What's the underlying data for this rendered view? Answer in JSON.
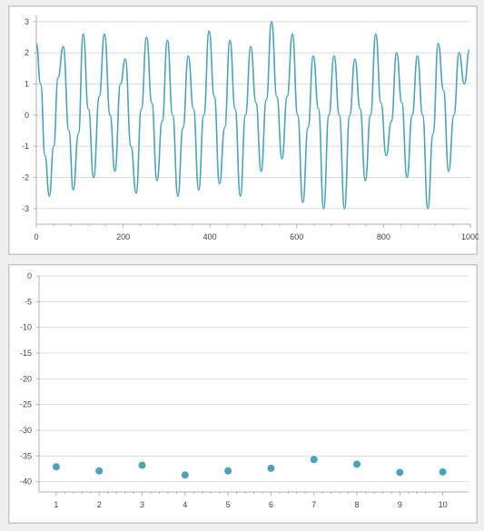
{
  "chart_data": [
    {
      "type": "line",
      "xlim": [
        0,
        1000
      ],
      "ylim": [
        -3.5,
        3.2
      ],
      "x_ticks": [
        0,
        200,
        400,
        600,
        800,
        1000
      ],
      "y_ticks": [
        3,
        2,
        1,
        0,
        -1,
        -2,
        -3
      ],
      "x_tick_labels": [
        "0",
        "200",
        "400",
        "600",
        "800",
        "1000"
      ],
      "y_tick_labels": [
        "3",
        "2",
        "1",
        "0",
        "-1",
        "-2",
        "-3"
      ],
      "grid": true,
      "legend": "none",
      "series_color": "#4aa3b8",
      "series": [
        {
          "x": [
            0,
            10,
            20,
            30,
            40,
            50,
            62,
            75,
            85,
            97,
            108,
            120,
            132,
            145,
            157,
            170,
            181,
            194,
            205,
            218,
            230,
            242,
            254,
            266,
            278,
            290,
            302,
            314,
            326,
            338,
            350,
            362,
            374,
            386,
            398,
            410,
            422,
            434,
            446,
            458,
            470,
            482,
            494,
            506,
            518,
            530,
            542,
            554,
            566,
            578,
            590,
            602,
            614,
            626,
            638,
            650,
            662,
            674,
            686,
            698,
            710,
            722,
            734,
            746,
            758,
            770,
            782,
            794,
            806,
            818,
            830,
            842,
            854,
            866,
            878,
            890,
            902,
            914,
            926,
            938,
            950,
            962,
            974,
            986,
            998
          ],
          "y": [
            2.3,
            1.0,
            -1.3,
            -2.6,
            -1.0,
            1.2,
            2.2,
            -0.5,
            -2.4,
            -0.6,
            2.6,
            0.2,
            -2.0,
            0.6,
            2.6,
            0.0,
            -1.8,
            1.0,
            1.8,
            -1.0,
            -2.5,
            0.2,
            2.5,
            0.4,
            -2.1,
            -0.2,
            2.4,
            0.0,
            -2.6,
            -0.4,
            1.9,
            0.2,
            -2.4,
            0.0,
            2.7,
            0.6,
            -2.2,
            -0.4,
            2.4,
            0.2,
            -2.6,
            0.0,
            2.2,
            0.4,
            -1.8,
            0.5,
            3.0,
            0.6,
            -1.4,
            0.6,
            2.6,
            0.0,
            -2.8,
            -0.4,
            1.9,
            0.2,
            -3.0,
            0.0,
            1.9,
            0.0,
            -3.0,
            0.0,
            1.8,
            0.2,
            -2.1,
            0.0,
            2.6,
            0.4,
            -1.3,
            -0.2,
            2.0,
            0.4,
            -2.0,
            0.0,
            1.9,
            0.0,
            -3.0,
            -0.6,
            2.3,
            0.8,
            -1.8,
            0.0,
            2.0,
            1.0,
            2.1
          ]
        }
      ]
    },
    {
      "type": "scatter",
      "xlim": [
        0.6,
        10.6
      ],
      "ylim": [
        -42,
        0
      ],
      "x_ticks": [
        1,
        2,
        3,
        4,
        5,
        6,
        7,
        8,
        9,
        10
      ],
      "y_ticks": [
        0,
        -5,
        -10,
        -15,
        -20,
        -25,
        -30,
        -35,
        -40
      ],
      "x_tick_labels": [
        "1",
        "2",
        "3",
        "4",
        "5",
        "6",
        "7",
        "8",
        "9",
        "10"
      ],
      "y_tick_labels": [
        "0",
        "-5",
        "-10",
        "-15",
        "-20",
        "-25",
        "-30",
        "-35",
        "-40"
      ],
      "grid": true,
      "legend": "none",
      "series_color": "#4aa3b8",
      "series": [
        {
          "x": [
            1,
            2,
            3,
            4,
            5,
            6,
            7,
            8,
            9,
            10
          ],
          "y": [
            -37.1,
            -37.9,
            -36.8,
            -38.7,
            -37.9,
            -37.4,
            -35.7,
            -36.6,
            -38.2,
            -38.1
          ]
        }
      ]
    }
  ]
}
